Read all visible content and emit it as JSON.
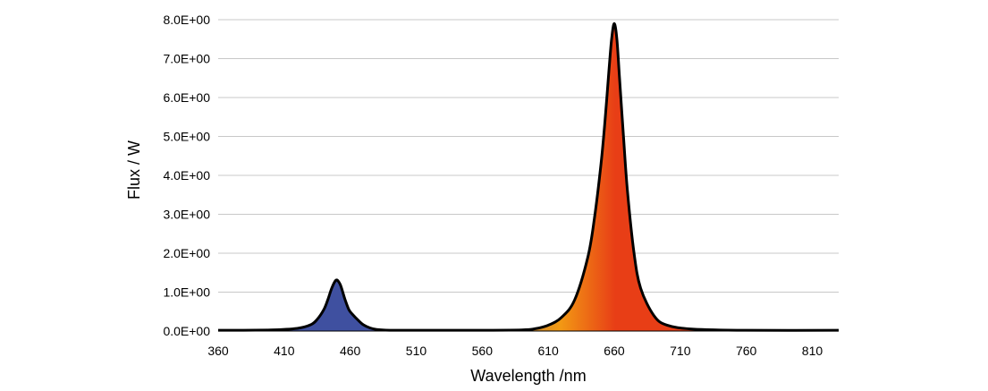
{
  "chart_data": {
    "type": "area",
    "title": "",
    "xlabel": "Wavelength /nm",
    "ylabel": "Flux / W",
    "xlim": [
      360,
      830
    ],
    "ylim": [
      0,
      8
    ],
    "x_ticks": [
      360,
      410,
      460,
      510,
      560,
      610,
      660,
      710,
      760,
      810
    ],
    "x_tick_labels": [
      "360",
      "410",
      "460",
      "510",
      "560",
      "610",
      "660",
      "710",
      "760",
      "810"
    ],
    "y_ticks": [
      0,
      1,
      2,
      3,
      4,
      5,
      6,
      7,
      8
    ],
    "y_tick_labels": [
      "0.0E+00",
      "1.0E+00",
      "2.0E+00",
      "3.0E+00",
      "4.0E+00",
      "5.0E+00",
      "6.0E+00",
      "7.0E+00",
      "8.0E+00"
    ],
    "grid": true,
    "legend": "none",
    "series": [
      {
        "x": [
          360,
          400,
          420,
          430,
          435,
          440,
          443,
          446,
          449,
          451,
          453,
          456,
          459,
          462,
          466,
          470,
          475,
          480,
          490,
          500,
          550,
          590,
          600,
          610,
          620,
          630,
          640,
          645,
          650,
          653,
          656,
          658,
          660,
          662,
          664,
          667,
          670,
          675,
          680,
          690,
          700,
          720,
          760,
          830
        ],
        "y": [
          0.02,
          0.03,
          0.07,
          0.16,
          0.3,
          0.55,
          0.8,
          1.1,
          1.3,
          1.28,
          1.15,
          0.82,
          0.55,
          0.42,
          0.28,
          0.16,
          0.08,
          0.04,
          0.02,
          0.02,
          0.02,
          0.03,
          0.06,
          0.15,
          0.35,
          0.8,
          1.9,
          2.9,
          4.3,
          5.4,
          6.7,
          7.5,
          7.9,
          7.5,
          6.5,
          5.0,
          3.6,
          2.0,
          1.1,
          0.4,
          0.15,
          0.05,
          0.02,
          0.02
        ]
      }
    ],
    "colors": {
      "blue_fill": "#3f50a0",
      "orange_fill": "#f29a14",
      "red_fill": "#e83e16",
      "curve": "#000000",
      "grid": "#c8c8c8"
    }
  }
}
